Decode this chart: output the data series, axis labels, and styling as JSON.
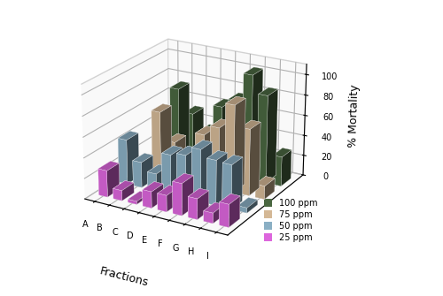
{
  "fractions": [
    "A",
    "B",
    "C",
    "D",
    "E",
    "F",
    "G",
    "H",
    "I"
  ],
  "series_labels": [
    "25 ppm",
    "50 ppm",
    "75 ppm",
    "100 ppm"
  ],
  "colors": [
    "#dd66dd",
    "#8aafc4",
    "#d4b896",
    "#4a6741"
  ],
  "data": {
    "25 ppm": [
      26,
      10,
      3,
      16,
      16,
      31,
      20,
      10,
      22
    ],
    "50 ppm": [
      44,
      25,
      17,
      39,
      42,
      51,
      44,
      43,
      5
    ],
    "75 ppm": [
      0,
      63,
      36,
      26,
      50,
      60,
      85,
      65,
      13
    ],
    "100 ppm": [
      26,
      75,
      53,
      37,
      66,
      75,
      103,
      86,
      29
    ]
  },
  "ylabel": "% Mortality",
  "xlabel": "Fractions",
  "zlim": [
    0,
    110
  ],
  "zticks": [
    0,
    20,
    40,
    60,
    80,
    100
  ],
  "background_color": "#ffffff",
  "bar_width": 0.6,
  "bar_depth": 0.6
}
